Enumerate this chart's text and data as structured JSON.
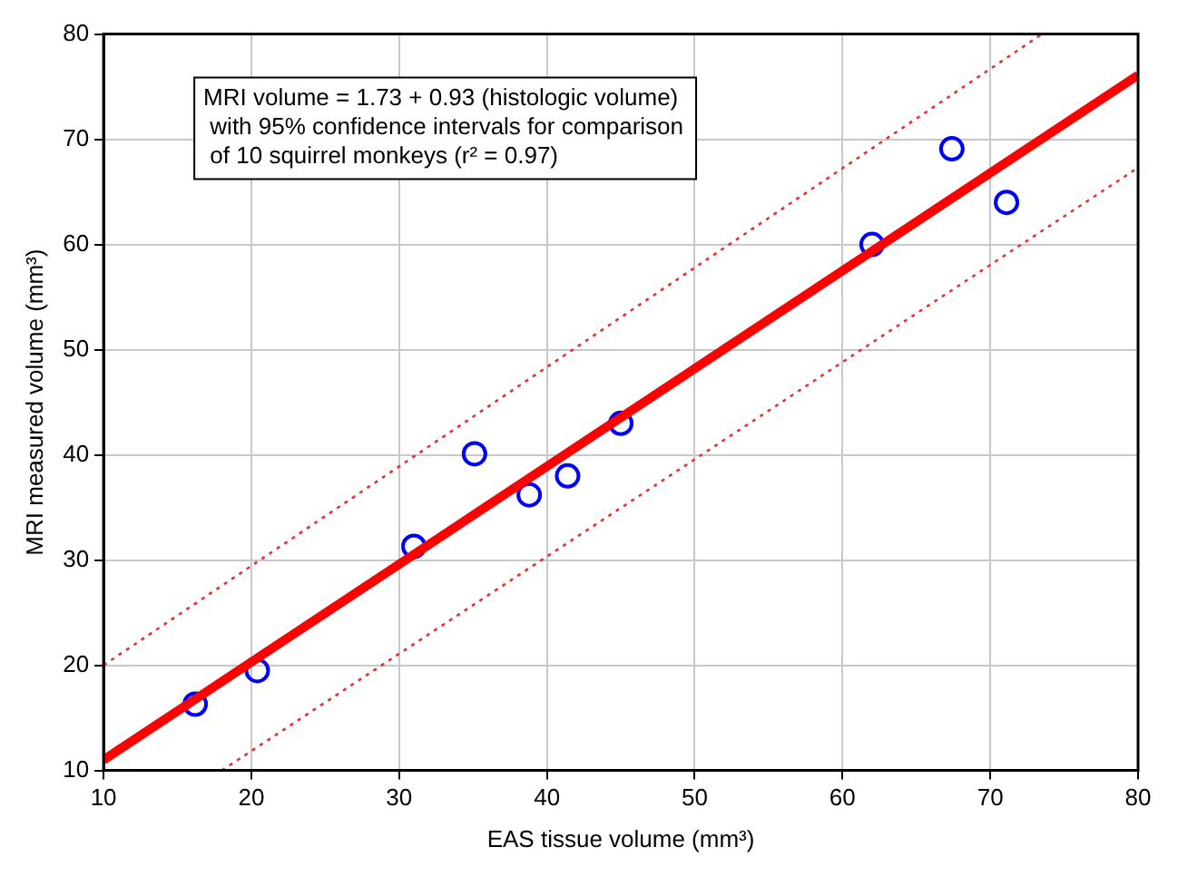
{
  "chart_data": {
    "type": "scatter",
    "xlabel": "EAS tissue volume (mm³)",
    "ylabel": "MRI measured volume (mm³)",
    "annotations": [
      "MRI volume = 1.73 + 0.93 (histologic volume)",
      " with 95% confidence intervals for comparison",
      " of 10 squirrel monkeys (r² = 0.97)"
    ],
    "xlim": [
      10,
      80
    ],
    "xticks": [
      10,
      20,
      30,
      40,
      50,
      60,
      70,
      80
    ],
    "ylim": [
      10,
      80
    ],
    "yticks": [
      10,
      20,
      30,
      40,
      50,
      60,
      70,
      80
    ],
    "grid": true,
    "legend": false,
    "series": [
      {
        "type": "scatter",
        "color": "#0000ff",
        "marker": "circle",
        "x": [
          16.2,
          20.4,
          31.0,
          35.1,
          38.8,
          41.4,
          45.0,
          62.0,
          67.4,
          71.1
        ],
        "values": [
          16.3,
          19.5,
          31.3,
          40.1,
          36.2,
          38.0,
          43.0,
          60.0,
          69.1,
          64.0
        ]
      },
      {
        "type": "line",
        "color": "#ff0000",
        "marker": "none",
        "line_style": "solid",
        "x": [
          10,
          80
        ],
        "values": [
          11.0,
          76.1
        ]
      },
      {
        "type": "line",
        "color": "#e83030",
        "marker": "none",
        "line_style": "dotted",
        "x": [
          10,
          73.5
        ],
        "values": [
          20.0,
          80.0
        ]
      },
      {
        "type": "line",
        "color": "#e83030",
        "marker": "none",
        "line_style": "dotted",
        "x": [
          18.0,
          80
        ],
        "values": [
          10.0,
          67.3
        ]
      }
    ]
  }
}
